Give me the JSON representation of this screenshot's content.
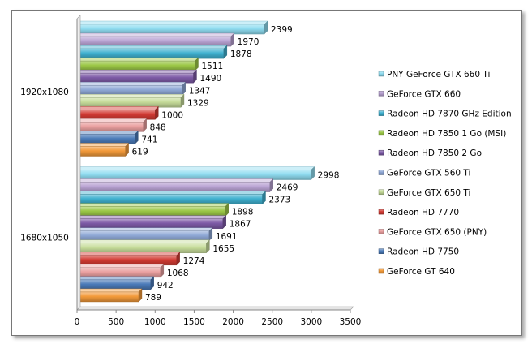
{
  "chart_data": {
    "type": "bar",
    "orientation": "horizontal",
    "bar_style": "3d",
    "categories": [
      "1920x1080",
      "1680x1050"
    ],
    "xlim": [
      0,
      3500
    ],
    "xticks": [
      0,
      500,
      1000,
      1500,
      2000,
      2500,
      3000,
      3500
    ],
    "grid": false,
    "legend_position": "right",
    "series": [
      {
        "name": "PNY GeForce GTX 660 Ti",
        "color": "#8fdcf0",
        "values": [
          2399,
          2998
        ]
      },
      {
        "name": "GeForce GTX 660",
        "color": "#b9a3d3",
        "values": [
          1970,
          2469
        ]
      },
      {
        "name": "Radeon HD 7870 GHz Edition",
        "color": "#3fb0cf",
        "values": [
          1878,
          2373
        ]
      },
      {
        "name": "Radeon HD 7850 1 Go (MSI)",
        "color": "#9bc746",
        "values": [
          1511,
          1898
        ]
      },
      {
        "name": "Radeon HD 7850 2 Go",
        "color": "#7d5aa6",
        "values": [
          1490,
          1867
        ]
      },
      {
        "name": "GeForce GTX 560 Ti",
        "color": "#8fa8d6",
        "values": [
          1347,
          1691
        ]
      },
      {
        "name": "GeForce GTX 650 Ti",
        "color": "#c6dc9a",
        "values": [
          1329,
          1655
        ]
      },
      {
        "name": "Radeon HD 7770",
        "color": "#d23a33",
        "values": [
          1000,
          1274
        ]
      },
      {
        "name": "GeForce GTX 650 (PNY)",
        "color": "#eaa0a0",
        "values": [
          848,
          1068
        ]
      },
      {
        "name": "Radeon HD 7750",
        "color": "#4a7ab8",
        "values": [
          741,
          942
        ]
      },
      {
        "name": "GeForce GT 640",
        "color": "#f39a3a",
        "values": [
          619,
          789
        ]
      }
    ]
  }
}
